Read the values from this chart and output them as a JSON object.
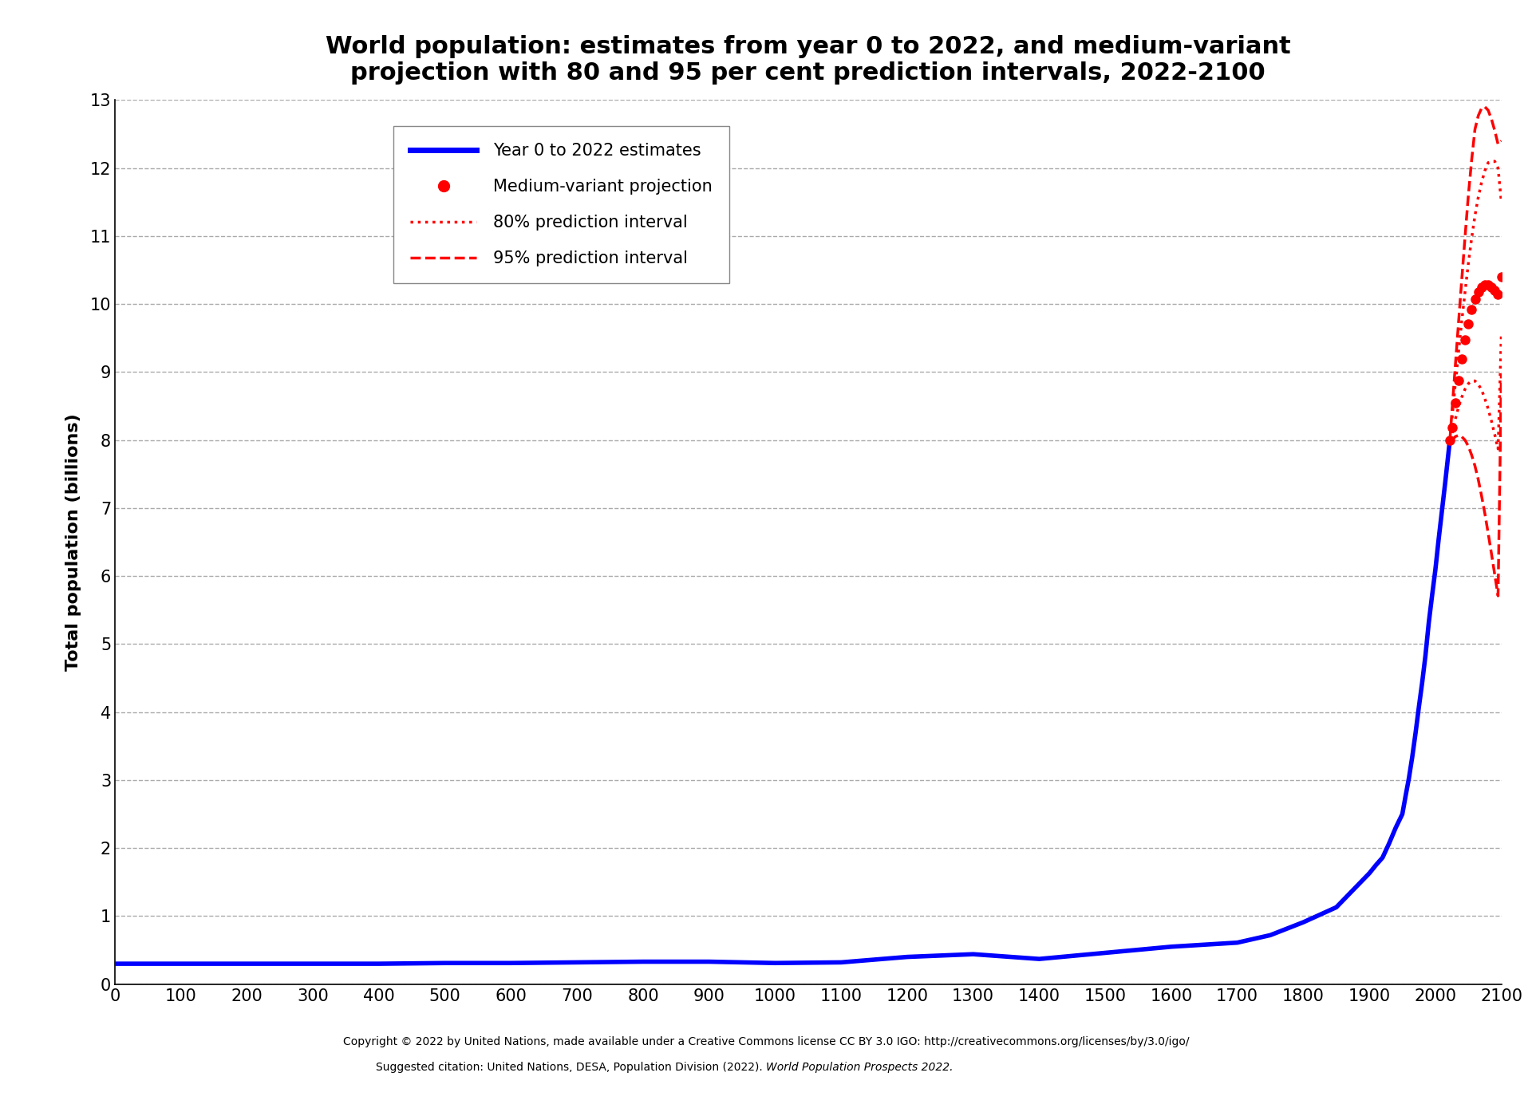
{
  "title": "World population: estimates from year 0 to 2022, and medium-variant\nprojection with 80 and 95 per cent prediction intervals, 2022-2100",
  "ylabel": "Total population (billions)",
  "xlabel": "",
  "xlim": [
    0,
    2100
  ],
  "ylim": [
    0,
    13
  ],
  "xticks": [
    0,
    100,
    200,
    300,
    400,
    500,
    600,
    700,
    800,
    900,
    1000,
    1100,
    1200,
    1300,
    1400,
    1500,
    1600,
    1700,
    1800,
    1900,
    2000,
    2100
  ],
  "yticks": [
    0,
    1,
    2,
    3,
    4,
    5,
    6,
    7,
    8,
    9,
    10,
    11,
    12,
    13
  ],
  "bg_color": "#ffffff",
  "line_color": "#0000ff",
  "proj_color": "#ff0000",
  "title_fontsize": 22,
  "axis_label_fontsize": 16,
  "tick_fontsize": 15,
  "footer_line1": "Copyright © 2022 by United Nations, made available under a Creative Commons license CC BY 3.0 IGO: http://creativecommons.org/licenses/by/3.0/igo/",
  "footer_prefix": "Suggested citation: United Nations, DESA, Population Division (2022). ",
  "footer_italic": "World Population Prospects 2022.",
  "legend_labels": [
    "Year 0 to 2022 estimates",
    "Medium-variant projection",
    "80% prediction interval",
    "95% prediction interval"
  ],
  "historical_years": [
    0,
    100,
    200,
    300,
    400,
    500,
    600,
    700,
    800,
    900,
    1000,
    1100,
    1200,
    1300,
    1400,
    1500,
    1600,
    1700,
    1750,
    1800,
    1850,
    1900,
    1910,
    1920,
    1930,
    1940,
    1950,
    1955,
    1960,
    1965,
    1970,
    1975,
    1980,
    1985,
    1990,
    1995,
    2000,
    2005,
    2010,
    2015,
    2022
  ],
  "historical_pop": [
    0.3,
    0.3,
    0.3,
    0.3,
    0.3,
    0.31,
    0.31,
    0.32,
    0.33,
    0.33,
    0.31,
    0.32,
    0.4,
    0.44,
    0.37,
    0.46,
    0.55,
    0.61,
    0.72,
    0.91,
    1.13,
    1.63,
    1.75,
    1.86,
    2.07,
    2.3,
    2.5,
    2.77,
    3.03,
    3.34,
    3.69,
    4.07,
    4.43,
    4.83,
    5.31,
    5.71,
    6.09,
    6.54,
    6.96,
    7.38,
    8.0
  ],
  "proj_medium_years": [
    2022,
    2025,
    2030,
    2035,
    2040,
    2045,
    2050,
    2055,
    2060,
    2065,
    2070,
    2075,
    2080,
    2085,
    2090,
    2095,
    2100
  ],
  "proj_medium_pop": [
    8.0,
    8.19,
    8.55,
    8.88,
    9.19,
    9.47,
    9.71,
    9.92,
    10.07,
    10.18,
    10.25,
    10.28,
    10.28,
    10.25,
    10.2,
    10.14,
    10.4
  ],
  "proj_80_low_years": [
    2022,
    2025,
    2030,
    2035,
    2040,
    2045,
    2050,
    2055,
    2060,
    2065,
    2070,
    2075,
    2080,
    2085,
    2090,
    2095,
    2100
  ],
  "proj_80_low_pop": [
    8.0,
    8.09,
    8.3,
    8.48,
    8.63,
    8.75,
    8.83,
    8.87,
    8.87,
    8.82,
    8.74,
    8.61,
    8.46,
    8.28,
    8.08,
    7.87,
    9.57
  ],
  "proj_80_high_years": [
    2022,
    2025,
    2030,
    2035,
    2040,
    2045,
    2050,
    2055,
    2060,
    2065,
    2070,
    2075,
    2080,
    2085,
    2090,
    2095,
    2100
  ],
  "proj_80_high_pop": [
    8.0,
    8.29,
    8.8,
    9.28,
    9.75,
    10.18,
    10.6,
    10.97,
    11.3,
    11.57,
    11.79,
    11.96,
    12.08,
    12.1,
    12.1,
    12.0,
    11.5
  ],
  "proj_95_low_years": [
    2022,
    2025,
    2030,
    2035,
    2040,
    2045,
    2050,
    2055,
    2060,
    2065,
    2070,
    2075,
    2080,
    2085,
    2090,
    2095,
    2100
  ],
  "proj_95_low_pop": [
    8.0,
    7.99,
    8.05,
    8.07,
    8.05,
    8.0,
    7.91,
    7.78,
    7.62,
    7.42,
    7.18,
    6.92,
    6.63,
    6.33,
    6.02,
    5.71,
    8.97
  ],
  "proj_95_high_years": [
    2022,
    2025,
    2030,
    2035,
    2040,
    2045,
    2050,
    2055,
    2060,
    2065,
    2070,
    2075,
    2080,
    2085,
    2090,
    2095,
    2100
  ],
  "proj_95_high_pop": [
    8.0,
    8.4,
    9.06,
    9.71,
    10.36,
    10.99,
    11.6,
    12.12,
    12.57,
    12.77,
    12.88,
    12.9,
    12.85,
    12.72,
    12.55,
    12.35,
    12.4
  ]
}
